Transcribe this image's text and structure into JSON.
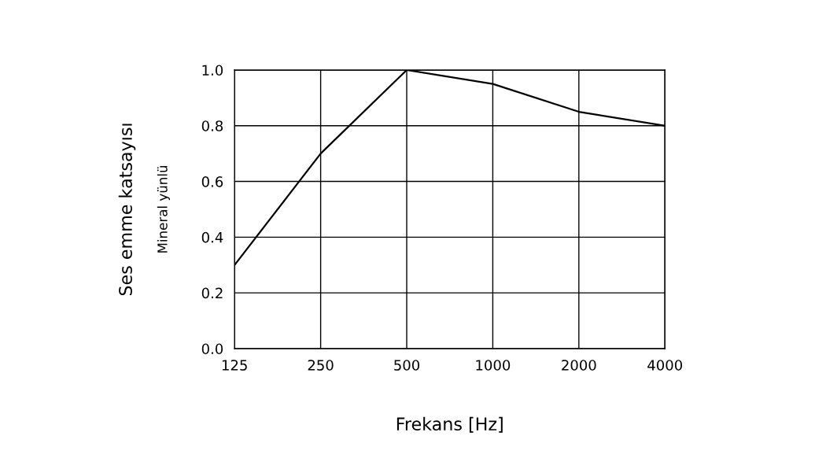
{
  "chart_data": {
    "type": "line",
    "categories": [
      "125",
      "250",
      "500",
      "1000",
      "2000",
      "4000"
    ],
    "series": [
      {
        "color": "#000000",
        "values": [
          0.3,
          0.7,
          1.0,
          0.95,
          0.85,
          0.8
        ]
      }
    ],
    "xlabel": "Frekans [Hz]",
    "ylabel": "Ses emme katsayısı",
    "annotations": [
      "Mineral yünlü"
    ],
    "ylim": [
      0,
      1
    ],
    "yticks": [
      {
        "value": 0,
        "label": "0.0"
      },
      0.2,
      0.4,
      0.6,
      0.8,
      {
        "value": 1,
        "label": "1.0"
      }
    ],
    "grid": true,
    "marker": "none",
    "line_style": "solid"
  }
}
